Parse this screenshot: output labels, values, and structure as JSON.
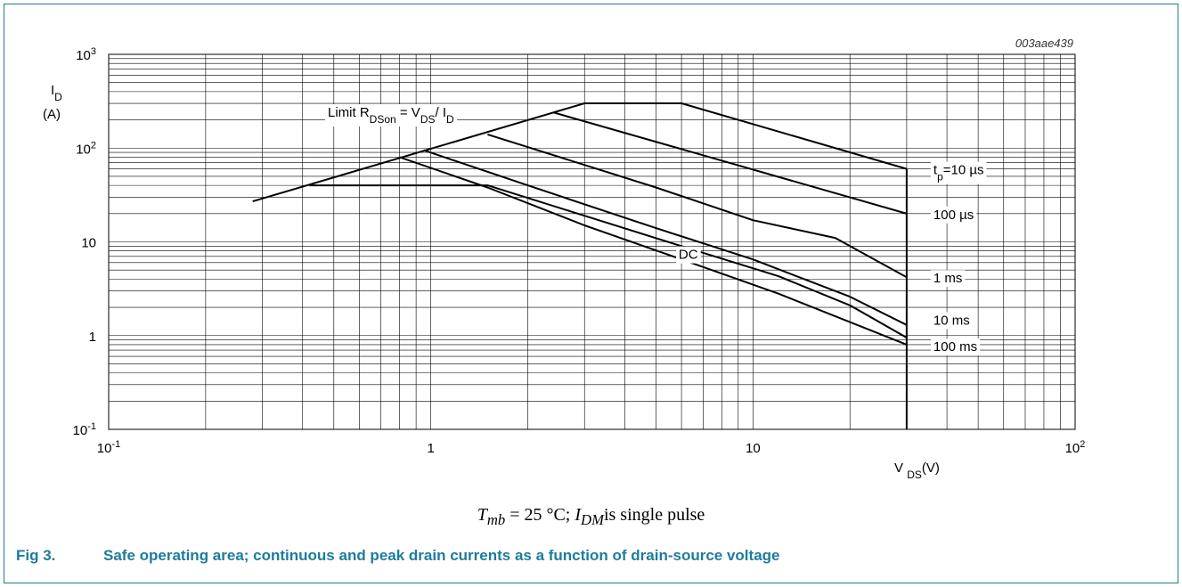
{
  "chart_data": {
    "type": "line",
    "title": "",
    "figure_code": "003aae439",
    "x_scale": "log",
    "y_scale": "log",
    "xlim": [
      0.1,
      100
    ],
    "ylim": [
      0.1,
      1000
    ],
    "grid": true,
    "xlabel": {
      "main": "V",
      "sub": "DS",
      "unit": "(V)"
    },
    "ylabel": {
      "main": "I",
      "sub": "D",
      "unit": "(A)"
    },
    "x_ticks": [
      {
        "value": 0.1,
        "base": "10",
        "exp": "-1"
      },
      {
        "value": 1,
        "base": "1",
        "exp": ""
      },
      {
        "value": 10,
        "base": "10",
        "exp": ""
      },
      {
        "value": 100,
        "base": "10",
        "exp": "2"
      }
    ],
    "y_ticks": [
      {
        "value": 0.1,
        "base": "10",
        "exp": "-1"
      },
      {
        "value": 1,
        "base": "1",
        "exp": ""
      },
      {
        "value": 10,
        "base": "10",
        "exp": ""
      },
      {
        "value": 100,
        "base": "10",
        "exp": "2"
      },
      {
        "value": 1000,
        "base": "10",
        "exp": "3"
      }
    ],
    "limit_line": {
      "label": {
        "a": "Limit R",
        "b": "DSon",
        "c": " = V",
        "d": "DS",
        "e": "/ I",
        "f": "D"
      },
      "x": [
        0.28,
        3.0
      ],
      "y": [
        27,
        300
      ]
    },
    "series": [
      {
        "name": "tp=10 µs",
        "label": {
          "a": "t",
          "b": "p",
          "c": "=10 µs"
        },
        "label_at": [
          30,
          60
        ],
        "x": [
          3.0,
          6.0,
          30
        ],
        "y": [
          300,
          300,
          60
        ]
      },
      {
        "name": "100 µs",
        "label": {
          "a": "100 µs"
        },
        "label_at": [
          30,
          20
        ],
        "x": [
          2.4,
          30
        ],
        "y": [
          240,
          20
        ]
      },
      {
        "name": "1 ms",
        "label": {
          "a": "1 ms"
        },
        "label_at": [
          30,
          4.2
        ],
        "x": [
          1.5,
          5,
          10,
          18,
          30
        ],
        "y": [
          140,
          38,
          17,
          11,
          4.2
        ]
      },
      {
        "name": "10 ms",
        "label": {
          "a": "10 ms"
        },
        "label_at": [
          30,
          1.3
        ],
        "x": [
          0.95,
          2,
          5,
          10,
          20,
          30
        ],
        "y": [
          95,
          40,
          14,
          6.5,
          2.6,
          1.3
        ]
      },
      {
        "name": "100 ms",
        "label": {
          "a": "100 ms"
        },
        "label_at": [
          30,
          0.85
        ],
        "x": [
          0.42,
          1.5,
          3,
          6,
          12,
          20,
          30
        ],
        "y": [
          40,
          40,
          19,
          9,
          4.3,
          2.1,
          0.95
        ]
      },
      {
        "name": "DC",
        "label": {
          "a": "DC"
        },
        "label_at": [
          6.3,
          7.5
        ],
        "x": [
          0.8,
          1.5,
          3,
          6,
          12,
          30
        ],
        "y": [
          80,
          38,
          15,
          6.5,
          2.8,
          0.8
        ]
      }
    ],
    "vertical_limit": {
      "x": 30,
      "y": [
        0.1,
        60
      ]
    }
  },
  "condition": {
    "T": "T",
    "T_sub": "mb",
    "eq": " = 25 °C; ",
    "I": "I",
    "I_sub": "DM",
    "rest": "is single pulse"
  },
  "caption": {
    "fig_no": "Fig 3.",
    "text": "Safe operating area; continuous and peak drain currents as a function of drain-source voltage"
  },
  "colors": {
    "frame": "#1f7a99",
    "caption": "#1d7c9e",
    "grid": "#000000",
    "curve": "#000000"
  }
}
